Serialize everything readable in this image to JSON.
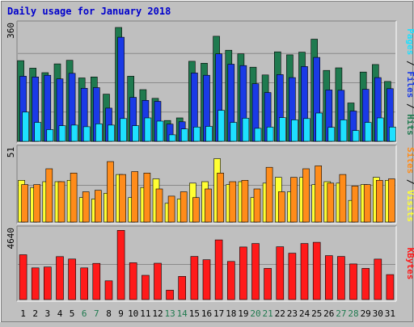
{
  "chart_data": {
    "type": "bar",
    "title": "Daily usage for January 2018",
    "days": [
      "1",
      "2",
      "3",
      "4",
      "5",
      "6",
      "7",
      "8",
      "9",
      "10",
      "11",
      "12",
      "13",
      "14",
      "15",
      "16",
      "17",
      "18",
      "19",
      "20",
      "21",
      "22",
      "23",
      "24",
      "25",
      "26",
      "27",
      "28",
      "29",
      "30",
      "31"
    ],
    "weekend_days": [
      "6",
      "7",
      "13",
      "14",
      "20",
      "21",
      "27",
      "28"
    ],
    "colors": {
      "background": "#c0c0c0",
      "plot_background": "#bfbfbf",
      "title": "#0000cc",
      "hits": "#1f7a4f",
      "files": "#1a3ae6",
      "pages": "#1ee0ff",
      "visits": "#ffff33",
      "sites": "#ff8c1a",
      "kbytes": "#ff1a1a",
      "weekday_label": "#000000",
      "weekend_label": "#1f7a4f"
    },
    "panels": [
      {
        "key": "traffic",
        "ymax_label": "360",
        "ymax": 360,
        "side_label": [
          {
            "text": "Pages",
            "color": "#1ee0ff"
          },
          {
            "text": " / ",
            "color": "#000000"
          },
          {
            "text": "Files",
            "color": "#1a3ae6"
          },
          {
            "text": " / ",
            "color": "#000000"
          },
          {
            "text": "Hits",
            "color": "#1f7a4f"
          }
        ],
        "series": [
          {
            "name": "Hits",
            "color": "#1f7a4f",
            "values": [
              248,
              225,
              211,
              238,
              249,
              195,
              198,
              145,
              350,
              200,
              159,
              132,
              64,
              72,
              246,
              240,
              323,
              280,
              269,
              228,
              204,
              275,
              266,
              274,
              314,
              218,
              226,
              118,
              213,
              236,
              184
            ]
          },
          {
            "name": "Files",
            "color": "#1a3ae6",
            "values": [
              200,
              198,
              203,
              192,
              209,
              163,
              165,
              102,
              320,
              135,
              126,
              123,
              53,
              60,
              210,
              203,
              269,
              237,
              233,
              177,
              150,
              205,
              196,
              230,
              258,
              158,
              157,
              93,
              160,
              196,
              162
            ]
          },
          {
            "name": "Pages",
            "color": "#1ee0ff",
            "values": [
              90,
              58,
              36,
              48,
              50,
              45,
              54,
              50,
              70,
              48,
              72,
              62,
              20,
              38,
              44,
              46,
              95,
              58,
              71,
              40,
              44,
              73,
              66,
              70,
              87,
              43,
              66,
              33,
              58,
              72,
              44
            ]
          }
        ]
      },
      {
        "key": "visits",
        "ymax_label": "51",
        "ymax": 51,
        "side_label": [
          {
            "text": "Sites",
            "color": "#ff8c1a"
          },
          {
            "text": " / ",
            "color": "#000000"
          },
          {
            "text": "Visits",
            "color": "#ffff33"
          }
        ],
        "series": [
          {
            "name": "Visits",
            "color": "#ffff33",
            "values": [
              29,
              24,
              28,
              28,
              29,
              17,
              16,
              20,
              33,
              17,
              24,
              30,
              13,
              16,
              27,
              28,
              44,
              26,
              28,
              17,
              27,
              31,
              21,
              31,
              26,
              28,
              27,
              15,
              26,
              31,
              29
            ]
          },
          {
            "name": "Sites",
            "color": "#ff8c1a",
            "values": [
              26,
              26,
              37,
              28,
              34,
              21,
              22,
              42,
              33,
              35,
              34,
              23,
              18,
              21,
              17,
              23,
              34,
              28,
              29,
              23,
              38,
              21,
              31,
              37,
              39,
              27,
              33,
              25,
              26,
              29,
              30
            ]
          }
        ]
      },
      {
        "key": "kbytes",
        "ymax_label": "4640",
        "ymax": 4640,
        "side_label": [
          {
            "text": "KBytes",
            "color": "#ff1a1a"
          }
        ],
        "series": [
          {
            "name": "KBytes",
            "color": "#ff1a1a",
            "values": [
              2960,
              2090,
              2150,
              2840,
              2680,
              2090,
              2390,
              1240,
              4570,
              2430,
              1600,
              2400,
              620,
              1530,
              2850,
              2630,
              3940,
              2520,
              3470,
              3700,
              2060,
              3490,
              3060,
              3700,
              3780,
              2900,
              2850,
              2350,
              2060,
              2670,
              1650
            ]
          }
        ]
      }
    ]
  }
}
